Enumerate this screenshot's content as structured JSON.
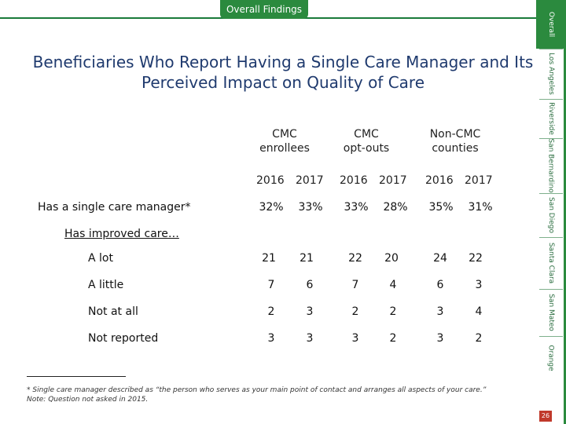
{
  "header": {
    "tab_label": "Overall Findings"
  },
  "title": "Beneficiaries Who Report Having a Single Care Manager and Its Perceived Impact on Quality of Care",
  "columns": [
    {
      "line1": "CMC",
      "line2": "enrollees"
    },
    {
      "line1": "CMC",
      "line2": "opt-outs"
    },
    {
      "line1": "Non-CMC",
      "line2": "counties"
    }
  ],
  "years": [
    "2016",
    "2017",
    "2016",
    "2017",
    "2016",
    "2017"
  ],
  "rows": [
    {
      "label": "Has a single care manager*",
      "values": [
        "32%",
        "33%",
        "33%",
        "28%",
        "35%",
        "31%"
      ]
    },
    {
      "label": "Has improved care…"
    },
    {
      "label": "A lot",
      "values": [
        "21",
        "21",
        "22",
        "20",
        "24",
        "22"
      ]
    },
    {
      "label": "A little",
      "values": [
        "7",
        "6",
        "7",
        "4",
        "6",
        "3"
      ]
    },
    {
      "label": "Not at all",
      "values": [
        "2",
        "3",
        "2",
        "2",
        "3",
        "4"
      ]
    },
    {
      "label": "Not reported",
      "values": [
        "3",
        "3",
        "3",
        "2",
        "3",
        "2"
      ]
    }
  ],
  "footnotes": {
    "line1": "* Single care manager described as “the person who serves as your main point of contact and arranges all aspects of your care.”",
    "line2": "Note: Question not asked in 2015."
  },
  "sidebar": {
    "items": [
      "Overall",
      "Los Angeles",
      "Riverside",
      "San Bernardino",
      "San Diego",
      "Santa Clara",
      "San Mateo",
      "Orange"
    ],
    "active": "Overall"
  },
  "page_number": "26",
  "colors": {
    "green": "#2b8a3e",
    "title_blue": "#1f3a6e",
    "page_red": "#c0392b"
  }
}
